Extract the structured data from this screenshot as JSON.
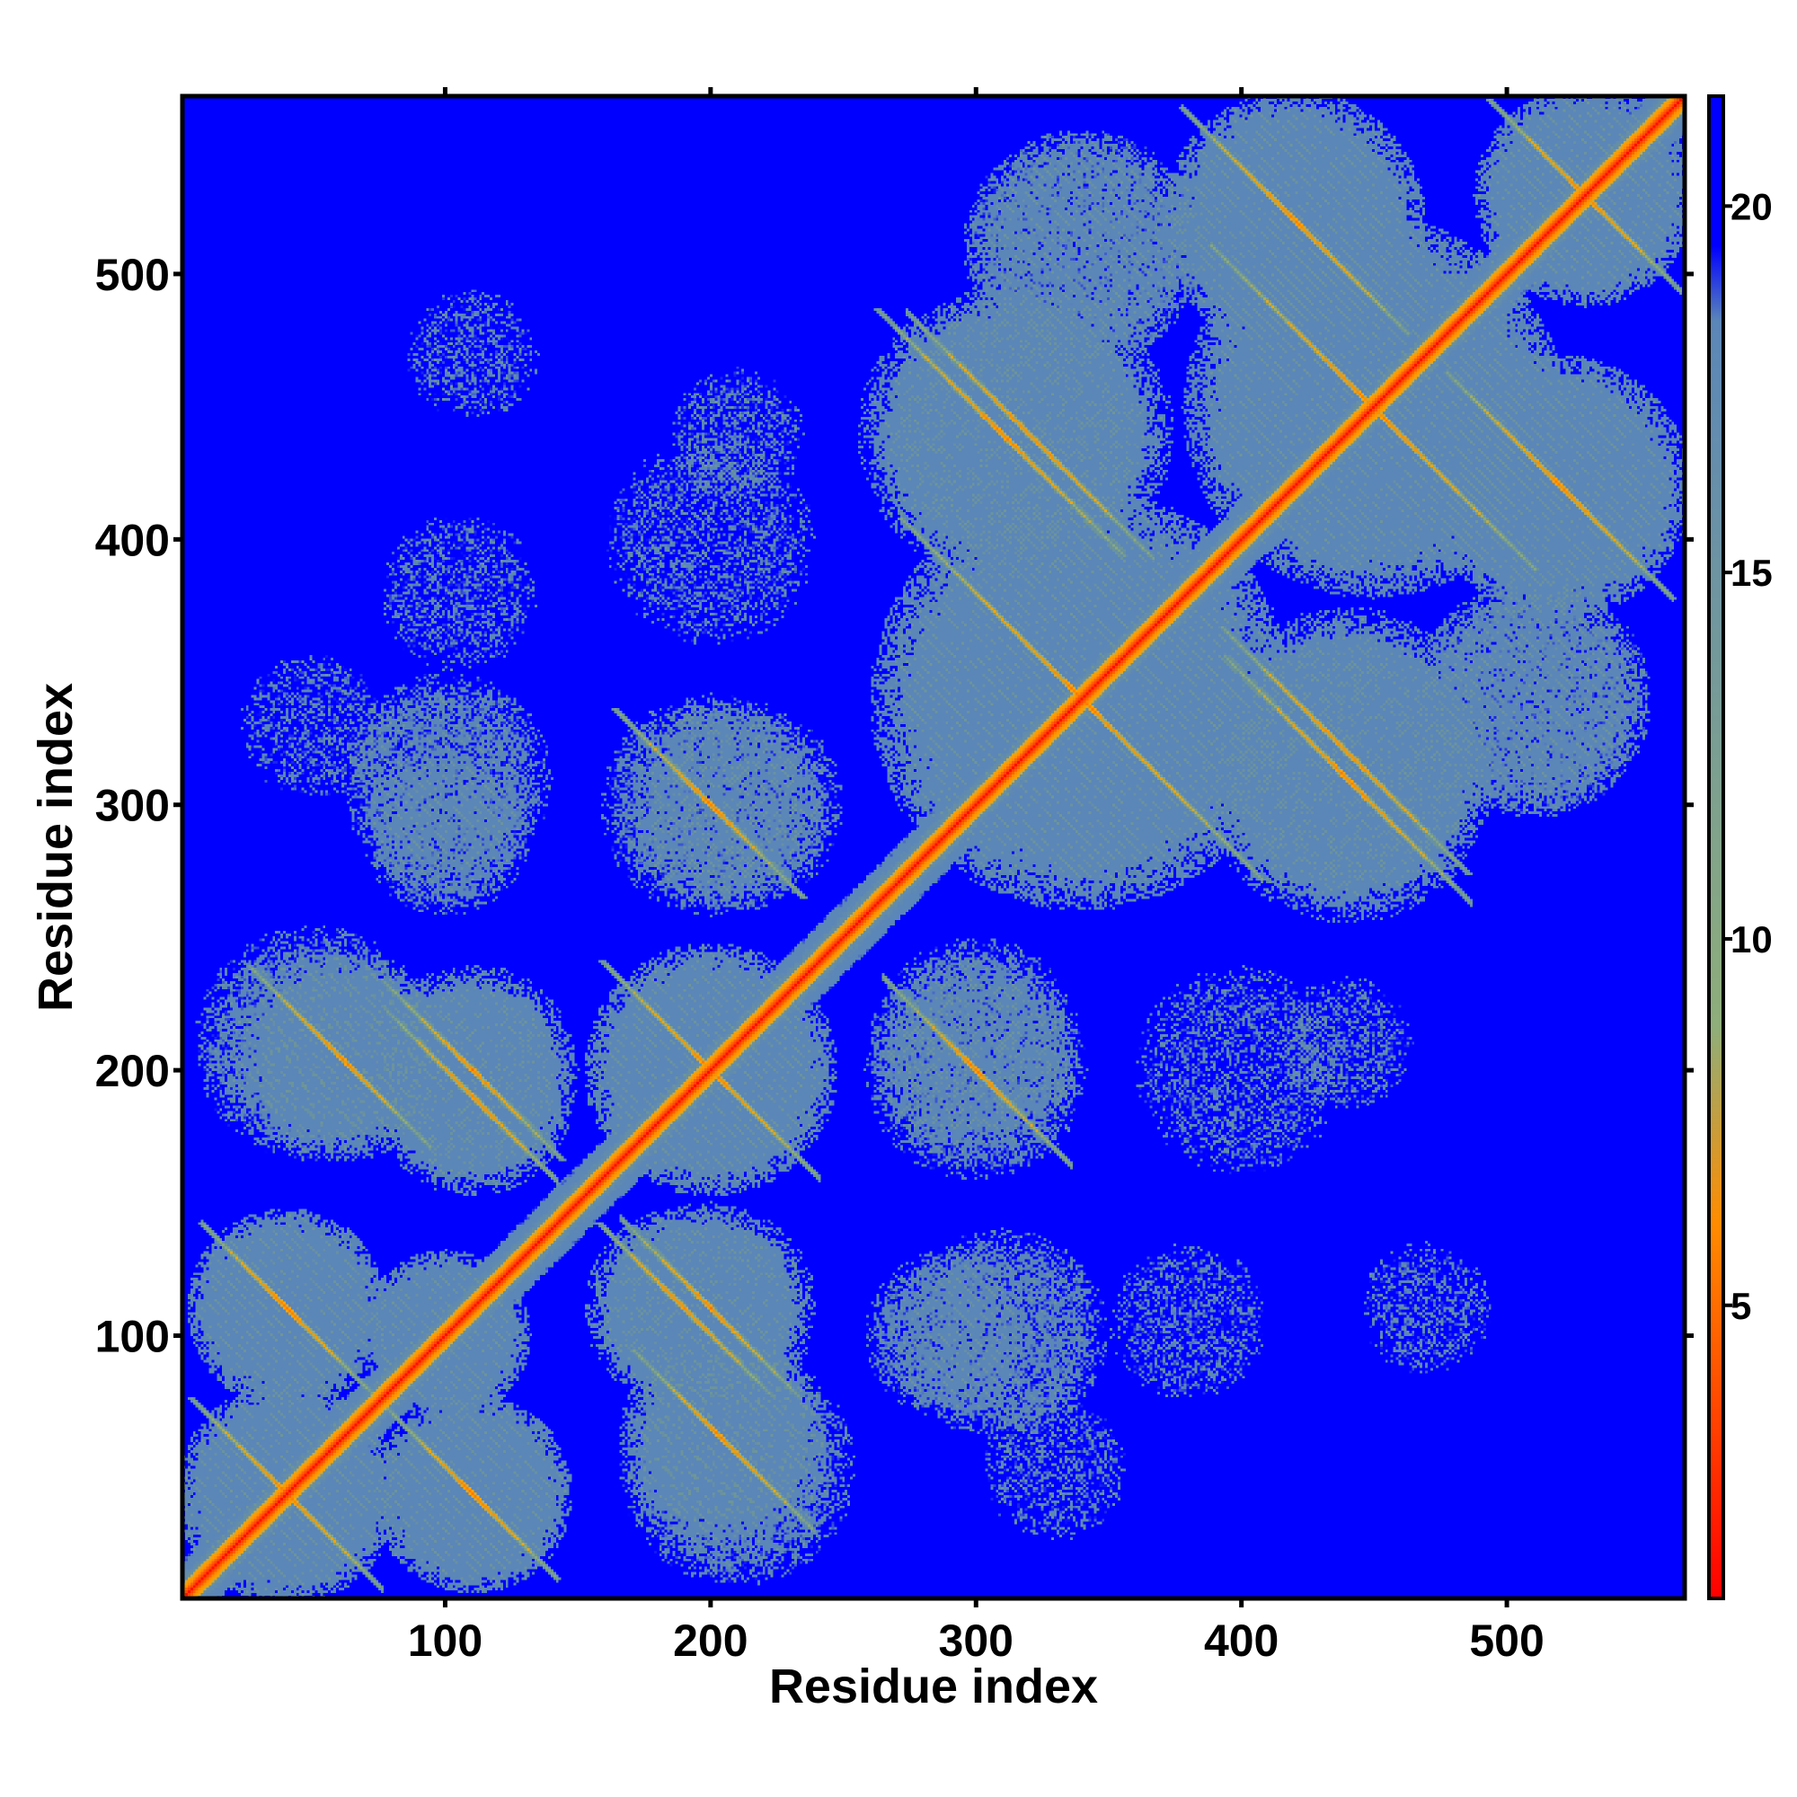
{
  "chart_data": {
    "type": "heatmap",
    "title": "",
    "xlabel": "Residue index",
    "ylabel": "Residue index",
    "x_range": [
      1,
      567
    ],
    "y_range": [
      1,
      567
    ],
    "x_ticks": [
      100,
      200,
      300,
      400,
      500
    ],
    "y_ticks": [
      100,
      200,
      300,
      400,
      500
    ],
    "colorbar": {
      "range": [
        1,
        21.5
      ],
      "ticks": [
        5,
        10,
        15,
        20
      ],
      "colors": [
        "#ff0000",
        "#ff8c00",
        "#8fae7a",
        "#5b86b8",
        "#0000ff"
      ],
      "position": "right"
    },
    "background_value": 21,
    "grid": false,
    "diagonal": {
      "from": 1,
      "to": 567,
      "value": 1.5,
      "halo_value": 14
    },
    "helix_cross_features": [
      {
        "cx": 40,
        "cy": 40,
        "r": 42,
        "value": 17,
        "arms": "both"
      },
      {
        "cx": 110,
        "cy": 40,
        "r": 38,
        "value": 17,
        "arms": "anti"
      },
      {
        "cx": 40,
        "cy": 110,
        "r": 38,
        "value": 17,
        "arms": "anti"
      },
      {
        "cx": 100,
        "cy": 100,
        "r": 32,
        "value": 17,
        "arms": "none"
      },
      {
        "cx": 60,
        "cy": 205,
        "r": 40,
        "value": 17,
        "arms": "anti"
      },
      {
        "cx": 110,
        "cy": 200,
        "r": 40,
        "value": 17,
        "arms": "anti"
      },
      {
        "cx": 190,
        "cy": 110,
        "r": 38,
        "value": 17,
        "arms": "anti"
      },
      {
        "cx": 200,
        "cy": 200,
        "r": 48,
        "value": 17,
        "arms": "both"
      },
      {
        "cx": 210,
        "cy": 50,
        "r": 45,
        "value": 18,
        "arms": "none"
      },
      {
        "cx": 200,
        "cy": 300,
        "r": 42,
        "value": 18,
        "arms": "anti"
      },
      {
        "cx": 100,
        "cy": 310,
        "r": 40,
        "value": 18,
        "arms": "none"
      },
      {
        "cx": 300,
        "cy": 210,
        "r": 40,
        "value": 18,
        "arms": "none"
      },
      {
        "cx": 290,
        "cy": 100,
        "r": 32,
        "value": 18,
        "arms": "none"
      },
      {
        "cx": 340,
        "cy": 340,
        "r": 80,
        "value": 17,
        "arms": "both"
      },
      {
        "cx": 310,
        "cy": 440,
        "r": 55,
        "value": 17,
        "arms": "anti"
      },
      {
        "cx": 440,
        "cy": 320,
        "r": 55,
        "value": 17,
        "arms": "anti"
      },
      {
        "cx": 450,
        "cy": 450,
        "r": 72,
        "value": 17,
        "arms": "both"
      },
      {
        "cx": 530,
        "cy": 530,
        "r": 42,
        "value": 17,
        "arms": "both"
      },
      {
        "cx": 420,
        "cy": 520,
        "r": 50,
        "value": 17,
        "arms": "anti"
      },
      {
        "cx": 520,
        "cy": 420,
        "r": 50,
        "value": 17,
        "arms": "anti"
      },
      {
        "cx": 340,
        "cy": 510,
        "r": 45,
        "value": 18,
        "arms": "none"
      },
      {
        "cx": 510,
        "cy": 340,
        "r": 45,
        "value": 18,
        "arms": "none"
      },
      {
        "cx": 110,
        "cy": 470,
        "r": 25,
        "value": 19,
        "arms": "none"
      },
      {
        "cx": 210,
        "cy": 440,
        "r": 25,
        "value": 19,
        "arms": "none"
      },
      {
        "cx": 400,
        "cy": 200,
        "r": 40,
        "value": 19,
        "arms": "none"
      },
      {
        "cx": 380,
        "cy": 105,
        "r": 30,
        "value": 19,
        "arms": "none"
      },
      {
        "cx": 330,
        "cy": 50,
        "r": 28,
        "value": 19,
        "arms": "none"
      }
    ]
  }
}
